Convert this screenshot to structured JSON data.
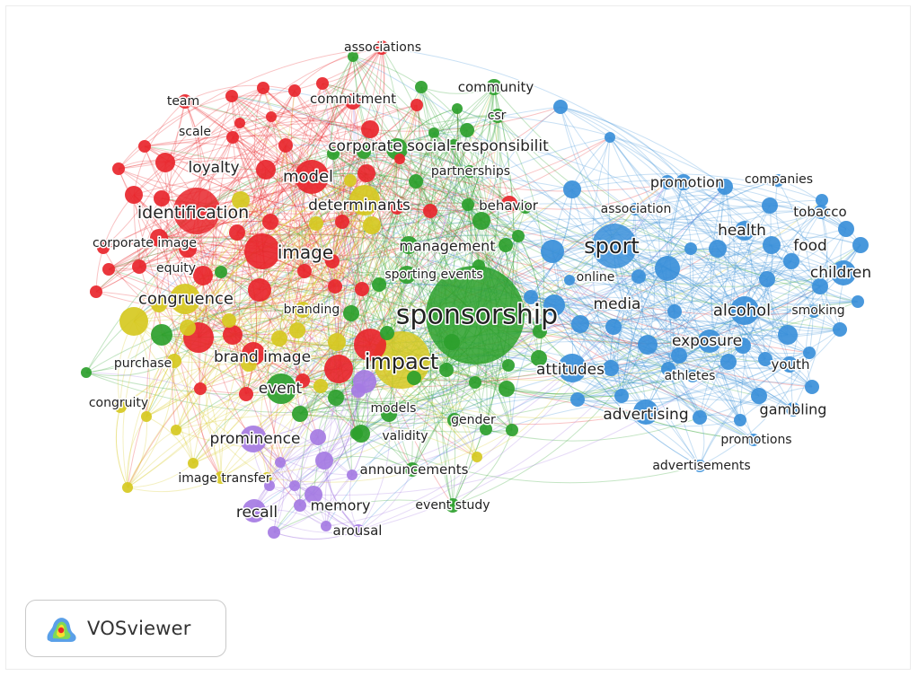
{
  "app": {
    "brand": "VOSviewer"
  },
  "colors": {
    "red": "#e8262c",
    "green": "#2ca02c",
    "blue": "#3a8fd9",
    "yellow": "#d6c921",
    "purple": "#a57be3",
    "background": "#ffffff"
  },
  "icons": {
    "logo": "vosviewer-logo-icon"
  },
  "network": {
    "clusters": [
      "red",
      "green",
      "blue",
      "yellow",
      "purple"
    ],
    "terms": [
      {
        "label": "associations",
        "cluster": "red"
      },
      {
        "label": "team",
        "cluster": "red"
      },
      {
        "label": "commitment",
        "cluster": "red"
      },
      {
        "label": "scale",
        "cluster": "red"
      },
      {
        "label": "loyalty",
        "cluster": "red"
      },
      {
        "label": "model",
        "cluster": "red"
      },
      {
        "label": "identification",
        "cluster": "red"
      },
      {
        "label": "corporate image",
        "cluster": "red"
      },
      {
        "label": "image",
        "cluster": "red"
      },
      {
        "label": "equity",
        "cluster": "red"
      },
      {
        "label": "brand image",
        "cluster": "red"
      },
      {
        "label": "behavior",
        "cluster": "red"
      },
      {
        "label": "community",
        "cluster": "green"
      },
      {
        "label": "csr",
        "cluster": "green"
      },
      {
        "label": "corporate social-responsibilit",
        "cluster": "green"
      },
      {
        "label": "partnerships",
        "cluster": "green"
      },
      {
        "label": "management",
        "cluster": "green"
      },
      {
        "label": "sporting events",
        "cluster": "green"
      },
      {
        "label": "sponsorship",
        "cluster": "green"
      },
      {
        "label": "event",
        "cluster": "green"
      },
      {
        "label": "gender",
        "cluster": "green"
      },
      {
        "label": "validity",
        "cluster": "green"
      },
      {
        "label": "announcements",
        "cluster": "green"
      },
      {
        "label": "event study",
        "cluster": "green"
      },
      {
        "label": "determinants",
        "cluster": "yellow"
      },
      {
        "label": "congruence",
        "cluster": "yellow"
      },
      {
        "label": "branding",
        "cluster": "yellow"
      },
      {
        "label": "impact",
        "cluster": "yellow"
      },
      {
        "label": "purchase",
        "cluster": "yellow"
      },
      {
        "label": "congruity",
        "cluster": "yellow"
      },
      {
        "label": "image transfer",
        "cluster": "yellow"
      },
      {
        "label": "models",
        "cluster": "purple"
      },
      {
        "label": "prominence",
        "cluster": "purple"
      },
      {
        "label": "recall",
        "cluster": "purple"
      },
      {
        "label": "memory",
        "cluster": "purple"
      },
      {
        "label": "arousal",
        "cluster": "purple"
      },
      {
        "label": "promotion",
        "cluster": "blue"
      },
      {
        "label": "companies",
        "cluster": "blue"
      },
      {
        "label": "association",
        "cluster": "blue"
      },
      {
        "label": "tobacco",
        "cluster": "blue"
      },
      {
        "label": "sport",
        "cluster": "blue"
      },
      {
        "label": "health",
        "cluster": "blue"
      },
      {
        "label": "food",
        "cluster": "blue"
      },
      {
        "label": "children",
        "cluster": "blue"
      },
      {
        "label": "online",
        "cluster": "blue"
      },
      {
        "label": "media",
        "cluster": "blue"
      },
      {
        "label": "alcohol",
        "cluster": "blue"
      },
      {
        "label": "smoking",
        "cluster": "blue"
      },
      {
        "label": "exposure",
        "cluster": "blue"
      },
      {
        "label": "attitudes",
        "cluster": "blue"
      },
      {
        "label": "athletes",
        "cluster": "blue"
      },
      {
        "label": "youth",
        "cluster": "blue"
      },
      {
        "label": "advertising",
        "cluster": "blue"
      },
      {
        "label": "gambling",
        "cluster": "blue"
      },
      {
        "label": "promotions",
        "cluster": "blue"
      },
      {
        "label": "advertisements",
        "cluster": "blue"
      }
    ]
  }
}
